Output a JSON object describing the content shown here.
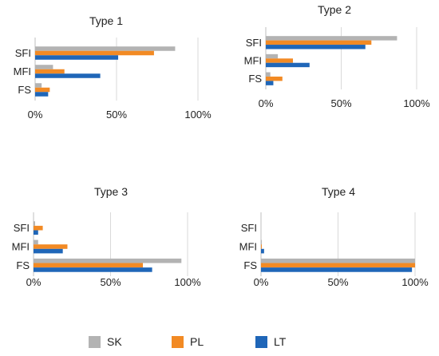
{
  "colors": {
    "SK": "#b3b3b3",
    "PL": "#f28a24",
    "LT": "#1f66b8",
    "grid": "#d9d9d9",
    "axis": "#bfbfbf"
  },
  "legend": [
    {
      "key": "SK",
      "label": "SK"
    },
    {
      "key": "PL",
      "label": "PL"
    },
    {
      "key": "LT",
      "label": "LT"
    }
  ],
  "chart_data": [
    {
      "type": "bar",
      "orientation": "horizontal",
      "title": "Type 1",
      "categories": [
        "SFI",
        "MFI",
        "FS"
      ],
      "xlim": [
        0,
        100
      ],
      "xticks": [
        "0%",
        "50%",
        "100%"
      ],
      "grid": true,
      "series": [
        {
          "name": "SK",
          "values": [
            86,
            11,
            4
          ]
        },
        {
          "name": "PL",
          "values": [
            73,
            18,
            9
          ]
        },
        {
          "name": "LT",
          "values": [
            51,
            40,
            8
          ]
        }
      ]
    },
    {
      "type": "bar",
      "orientation": "horizontal",
      "title": "Type 2",
      "categories": [
        "SFI",
        "MFI",
        "FS"
      ],
      "xlim": [
        0,
        100
      ],
      "xticks": [
        "0%",
        "50%",
        "100%"
      ],
      "grid": true,
      "series": [
        {
          "name": "SK",
          "values": [
            87,
            8,
            3
          ]
        },
        {
          "name": "PL",
          "values": [
            70,
            18,
            11
          ]
        },
        {
          "name": "LT",
          "values": [
            66,
            29,
            5
          ]
        }
      ]
    },
    {
      "type": "bar",
      "orientation": "horizontal",
      "title": "Type 3",
      "categories": [
        "SFI",
        "MFI",
        "FS"
      ],
      "xlim": [
        0,
        100
      ],
      "xticks": [
        "0%",
        "50%",
        "100%"
      ],
      "grid": true,
      "series": [
        {
          "name": "SK",
          "values": [
            1,
            3,
            96
          ]
        },
        {
          "name": "PL",
          "values": [
            6,
            22,
            71
          ]
        },
        {
          "name": "LT",
          "values": [
            3,
            19,
            77
          ]
        }
      ]
    },
    {
      "type": "bar",
      "orientation": "horizontal",
      "title": "Type 4",
      "categories": [
        "SFI",
        "MFI",
        "FS"
      ],
      "xlim": [
        0,
        100
      ],
      "xticks": [
        "0%",
        "50%",
        "100%"
      ],
      "grid": true,
      "series": [
        {
          "name": "SK",
          "values": [
            0,
            0.5,
            100
          ]
        },
        {
          "name": "PL",
          "values": [
            0,
            0.5,
            100
          ]
        },
        {
          "name": "LT",
          "values": [
            0,
            2,
            98
          ]
        }
      ]
    }
  ]
}
